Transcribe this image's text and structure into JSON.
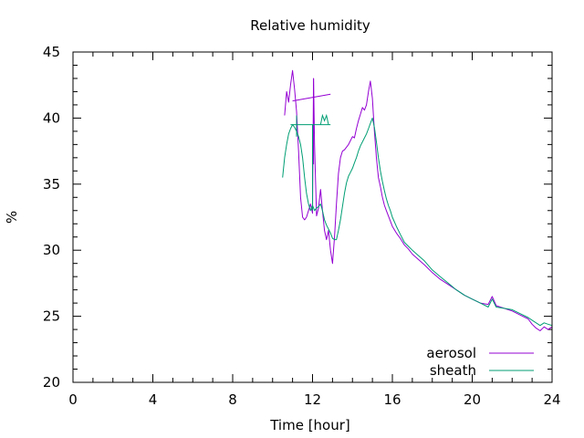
{
  "chart_data": {
    "type": "line",
    "title": "Relative humidity",
    "xlabel": "Time [hour]",
    "ylabel": "%",
    "xlim": [
      0,
      24
    ],
    "ylim": [
      20,
      45
    ],
    "x_ticks": [
      0,
      4,
      8,
      12,
      16,
      20,
      24
    ],
    "y_ticks": [
      20,
      25,
      30,
      35,
      40,
      45
    ],
    "grid": false,
    "legend_position": "bottom-right",
    "series": [
      {
        "name": "aerosol",
        "color": "#9400d3",
        "points": [
          [
            10.6,
            40.2
          ],
          [
            10.7,
            42.0
          ],
          [
            10.8,
            41.2
          ],
          [
            10.9,
            42.5
          ],
          [
            11.0,
            43.6
          ],
          [
            11.1,
            42.2
          ],
          [
            11.2,
            40.5
          ],
          [
            11.3,
            37.5
          ],
          [
            11.4,
            34.0
          ],
          [
            11.5,
            32.5
          ],
          [
            11.6,
            32.3
          ],
          [
            11.7,
            32.5
          ],
          [
            11.8,
            33.0
          ],
          [
            11.9,
            33.5
          ],
          [
            12.0,
            32.8
          ],
          [
            12.05,
            43.0
          ],
          [
            12.1,
            38.0
          ],
          [
            12.2,
            32.6
          ],
          [
            12.3,
            33.2
          ],
          [
            12.4,
            34.6
          ],
          [
            12.5,
            33.0
          ],
          [
            12.6,
            31.5
          ],
          [
            12.7,
            30.8
          ],
          [
            12.8,
            31.5
          ],
          [
            12.9,
            30.0
          ],
          [
            13.0,
            29.0
          ],
          [
            13.1,
            31.0
          ],
          [
            13.2,
            33.5
          ],
          [
            13.3,
            35.8
          ],
          [
            13.4,
            37.0
          ],
          [
            13.5,
            37.5
          ],
          [
            13.6,
            37.6
          ],
          [
            13.7,
            37.8
          ],
          [
            13.8,
            38.0
          ],
          [
            13.9,
            38.3
          ],
          [
            14.0,
            38.6
          ],
          [
            14.1,
            38.5
          ],
          [
            14.2,
            39.2
          ],
          [
            14.3,
            39.8
          ],
          [
            14.4,
            40.3
          ],
          [
            14.5,
            40.8
          ],
          [
            14.6,
            40.6
          ],
          [
            14.7,
            41.0
          ],
          [
            14.8,
            42.0
          ],
          [
            14.9,
            42.8
          ],
          [
            15.0,
            41.5
          ],
          [
            15.1,
            39.0
          ],
          [
            15.2,
            37.0
          ],
          [
            15.3,
            35.5
          ],
          [
            15.4,
            34.8
          ],
          [
            15.5,
            34.0
          ],
          [
            15.6,
            33.4
          ],
          [
            15.7,
            33.0
          ],
          [
            15.8,
            32.6
          ],
          [
            15.9,
            32.2
          ],
          [
            16.0,
            31.8
          ],
          [
            16.2,
            31.3
          ],
          [
            16.4,
            30.9
          ],
          [
            16.6,
            30.4
          ],
          [
            16.8,
            30.1
          ],
          [
            17.0,
            29.7
          ],
          [
            17.3,
            29.3
          ],
          [
            17.6,
            28.9
          ],
          [
            18.0,
            28.3
          ],
          [
            18.4,
            27.8
          ],
          [
            18.8,
            27.4
          ],
          [
            19.2,
            27.0
          ],
          [
            19.6,
            26.6
          ],
          [
            20.0,
            26.3
          ],
          [
            20.4,
            26.0
          ],
          [
            20.8,
            25.9
          ],
          [
            21.0,
            26.5
          ],
          [
            21.2,
            25.8
          ],
          [
            21.6,
            25.6
          ],
          [
            22.0,
            25.4
          ],
          [
            22.4,
            25.1
          ],
          [
            22.8,
            24.8
          ],
          [
            23.0,
            24.4
          ],
          [
            23.2,
            24.1
          ],
          [
            23.4,
            23.9
          ],
          [
            23.6,
            24.2
          ],
          [
            23.8,
            24.0
          ],
          [
            24.0,
            24.2
          ]
        ],
        "segments": [
          [
            [
              11.0,
              41.3
            ],
            [
              12.9,
              41.8
            ]
          ],
          [
            [
              12.05,
              36.5
            ],
            [
              12.05,
              43.0
            ]
          ]
        ]
      },
      {
        "name": "sheath",
        "color": "#009e73",
        "points": [
          [
            10.5,
            35.5
          ],
          [
            10.6,
            37.0
          ],
          [
            10.7,
            38.0
          ],
          [
            10.8,
            38.8
          ],
          [
            10.9,
            39.2
          ],
          [
            11.0,
            39.5
          ],
          [
            11.1,
            39.3
          ],
          [
            11.2,
            39.0
          ],
          [
            11.3,
            38.6
          ],
          [
            11.4,
            38.0
          ],
          [
            11.5,
            37.0
          ],
          [
            11.6,
            35.5
          ],
          [
            11.7,
            34.3
          ],
          [
            11.8,
            33.5
          ],
          [
            11.9,
            33.0
          ],
          [
            12.0,
            33.4
          ],
          [
            12.1,
            33.0
          ],
          [
            12.2,
            33.2
          ],
          [
            12.3,
            33.3
          ],
          [
            12.4,
            33.5
          ],
          [
            12.5,
            33.0
          ],
          [
            12.6,
            32.3
          ],
          [
            12.7,
            31.9
          ],
          [
            12.8,
            31.6
          ],
          [
            12.9,
            31.3
          ],
          [
            13.0,
            30.9
          ],
          [
            13.1,
            30.8
          ],
          [
            13.2,
            30.8
          ],
          [
            13.3,
            31.5
          ],
          [
            13.4,
            32.3
          ],
          [
            13.5,
            33.3
          ],
          [
            13.6,
            34.3
          ],
          [
            13.7,
            35.1
          ],
          [
            13.8,
            35.6
          ],
          [
            13.9,
            35.9
          ],
          [
            14.0,
            36.2
          ],
          [
            14.1,
            36.6
          ],
          [
            14.2,
            37.0
          ],
          [
            14.3,
            37.5
          ],
          [
            14.4,
            37.9
          ],
          [
            14.5,
            38.2
          ],
          [
            14.6,
            38.5
          ],
          [
            14.7,
            38.8
          ],
          [
            14.8,
            39.2
          ],
          [
            14.9,
            39.6
          ],
          [
            15.0,
            40.0
          ],
          [
            15.1,
            39.3
          ],
          [
            15.2,
            38.2
          ],
          [
            15.3,
            37.0
          ],
          [
            15.4,
            36.0
          ],
          [
            15.5,
            35.2
          ],
          [
            15.6,
            34.5
          ],
          [
            15.7,
            33.9
          ],
          [
            15.8,
            33.4
          ],
          [
            15.9,
            33.0
          ],
          [
            16.0,
            32.5
          ],
          [
            16.2,
            31.8
          ],
          [
            16.4,
            31.2
          ],
          [
            16.6,
            30.6
          ],
          [
            16.8,
            30.3
          ],
          [
            17.0,
            30.0
          ],
          [
            17.3,
            29.6
          ],
          [
            17.6,
            29.2
          ],
          [
            18.0,
            28.5
          ],
          [
            18.4,
            28.0
          ],
          [
            18.8,
            27.5
          ],
          [
            19.2,
            27.0
          ],
          [
            19.6,
            26.6
          ],
          [
            20.0,
            26.3
          ],
          [
            20.4,
            26.0
          ],
          [
            20.8,
            25.7
          ],
          [
            21.0,
            26.3
          ],
          [
            21.2,
            25.7
          ],
          [
            21.6,
            25.6
          ],
          [
            22.0,
            25.5
          ],
          [
            22.4,
            25.2
          ],
          [
            22.8,
            24.9
          ],
          [
            23.0,
            24.7
          ],
          [
            23.2,
            24.5
          ],
          [
            23.4,
            24.3
          ],
          [
            23.6,
            24.5
          ],
          [
            23.8,
            24.4
          ],
          [
            24.0,
            24.3
          ]
        ],
        "segments": [
          [
            [
              10.9,
              39.5
            ],
            [
              12.9,
              39.5
            ]
          ],
          [
            [
              11.2,
              40.2
            ],
            [
              11.2,
              38.6
            ]
          ],
          [
            [
              12.0,
              39.5
            ],
            [
              12.0,
              33.0
            ]
          ],
          [
            [
              12.4,
              39.5
            ],
            [
              12.5,
              40.2
            ],
            [
              12.6,
              39.8
            ],
            [
              12.7,
              40.2
            ],
            [
              12.8,
              39.5
            ]
          ]
        ]
      }
    ]
  }
}
